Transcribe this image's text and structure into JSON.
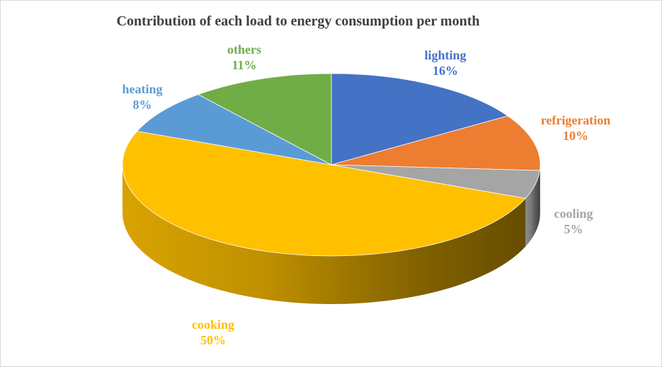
{
  "chart_data": {
    "type": "pie",
    "title": "Contribution of each load to energy consumption per month",
    "three_d": true,
    "legend": "none",
    "slices": [
      {
        "label": "lighting",
        "value": 16,
        "pct": "16%",
        "color": "#4472C4"
      },
      {
        "label": "refrigeration",
        "value": 10,
        "pct": "10%",
        "color": "#ED7D31"
      },
      {
        "label": "cooling",
        "value": 5,
        "pct": "5%",
        "color": "#A5A5A5"
      },
      {
        "label": "cooking",
        "value": 50,
        "pct": "50%",
        "color": "#FFC000"
      },
      {
        "label": "heating",
        "value": 8,
        "pct": "8%",
        "color": "#5B9BD5"
      },
      {
        "label": "others",
        "value": 11,
        "pct": "11%",
        "color": "#70AD47"
      }
    ]
  }
}
